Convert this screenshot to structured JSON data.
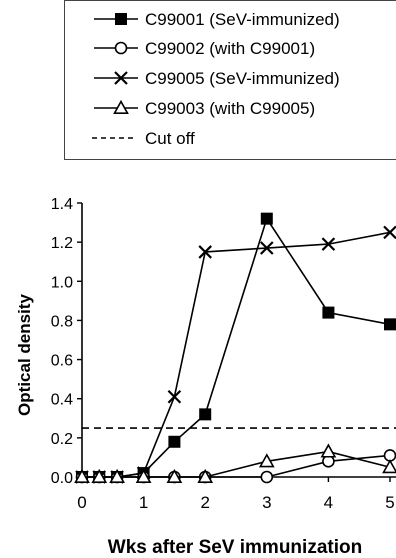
{
  "chart_data": {
    "type": "line",
    "xlabel": "Wks after SeV immunization",
    "ylabel": "Optical density",
    "xlim": [
      0,
      5
    ],
    "ylim": [
      0,
      1.4
    ],
    "xticks": [
      "0",
      "1",
      "2",
      "3",
      "4",
      "5"
    ],
    "yticks": [
      "0.0",
      "0.2",
      "0.4",
      "0.6",
      "0.8",
      "1.0",
      "1.2",
      "1.4"
    ],
    "legend_position": "top",
    "grid": false,
    "series": [
      {
        "name": "C99001 (SeV-immunized)",
        "marker": "filled-square",
        "line": "solid",
        "x": [
          0,
          0.28,
          0.57,
          1.0,
          1.5,
          2.0,
          3.0,
          4.0,
          5.0
        ],
        "y": [
          0.0,
          0.0,
          0.0,
          0.02,
          0.18,
          0.32,
          1.32,
          0.84,
          0.78
        ]
      },
      {
        "name": "C99002 (with C99001)",
        "marker": "open-circle",
        "line": "solid",
        "x": [
          0,
          0.28,
          0.57,
          1.0,
          1.5,
          2.0,
          3.0,
          4.0,
          5.0
        ],
        "y": [
          0.0,
          0.0,
          0.0,
          0.0,
          0.0,
          0.0,
          0.0,
          0.08,
          0.11
        ]
      },
      {
        "name": "C99005 (SeV-immunized)",
        "marker": "x",
        "line": "solid",
        "x": [
          0,
          0.28,
          0.57,
          1.0,
          1.5,
          2.0,
          3.0,
          4.0,
          5.0
        ],
        "y": [
          0.0,
          0.0,
          0.0,
          0.02,
          0.41,
          1.15,
          1.17,
          1.19,
          1.25
        ]
      },
      {
        "name": "C99003 (with C99005)",
        "marker": "open-triangle",
        "line": "solid",
        "x": [
          0,
          0.28,
          0.57,
          1.0,
          1.5,
          2.0,
          3.0,
          4.0,
          5.0
        ],
        "y": [
          0.0,
          0.0,
          0.0,
          0.0,
          0.0,
          0.0,
          0.08,
          0.13,
          0.05
        ]
      }
    ],
    "reference_lines": [
      {
        "name": "Cut off",
        "y": 0.25,
        "line": "dashed"
      }
    ]
  }
}
